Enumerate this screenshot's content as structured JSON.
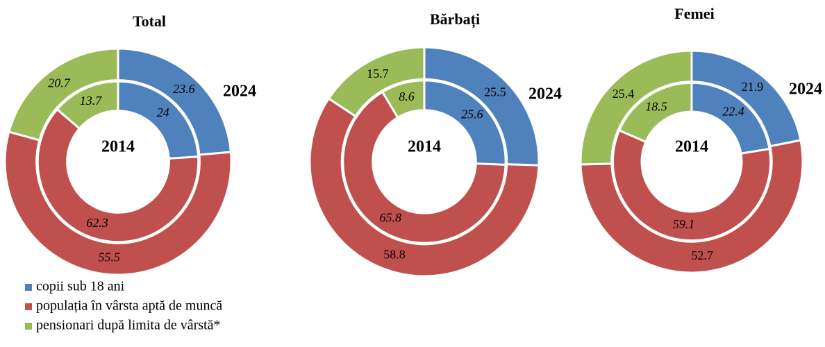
{
  "legend": {
    "categories": [
      "copii sub 18 ani",
      "populația în vârsta aptă de muncă",
      "pensionari după limita de vârstă*"
    ],
    "colors": [
      "#4f81bd",
      "#c0504d",
      "#9bbb59"
    ]
  },
  "chart_data": [
    {
      "type": "donut",
      "title": "Total",
      "series": [
        {
          "name": "2024",
          "values": [
            23.6,
            55.5,
            20.7
          ]
        },
        {
          "name": "2014",
          "values": [
            24,
            62.3,
            13.7
          ]
        }
      ]
    },
    {
      "type": "donut",
      "title": "Bărbați",
      "series": [
        {
          "name": "2024",
          "values": [
            25.5,
            58.8,
            15.7
          ]
        },
        {
          "name": "2014",
          "values": [
            25.6,
            65.8,
            8.6
          ]
        }
      ]
    },
    {
      "type": "donut",
      "title": "Femei",
      "series": [
        {
          "name": "2024",
          "values": [
            21.9,
            52.7,
            25.4
          ]
        },
        {
          "name": "2014",
          "values": [
            22.4,
            59.1,
            18.5
          ]
        }
      ]
    }
  ]
}
